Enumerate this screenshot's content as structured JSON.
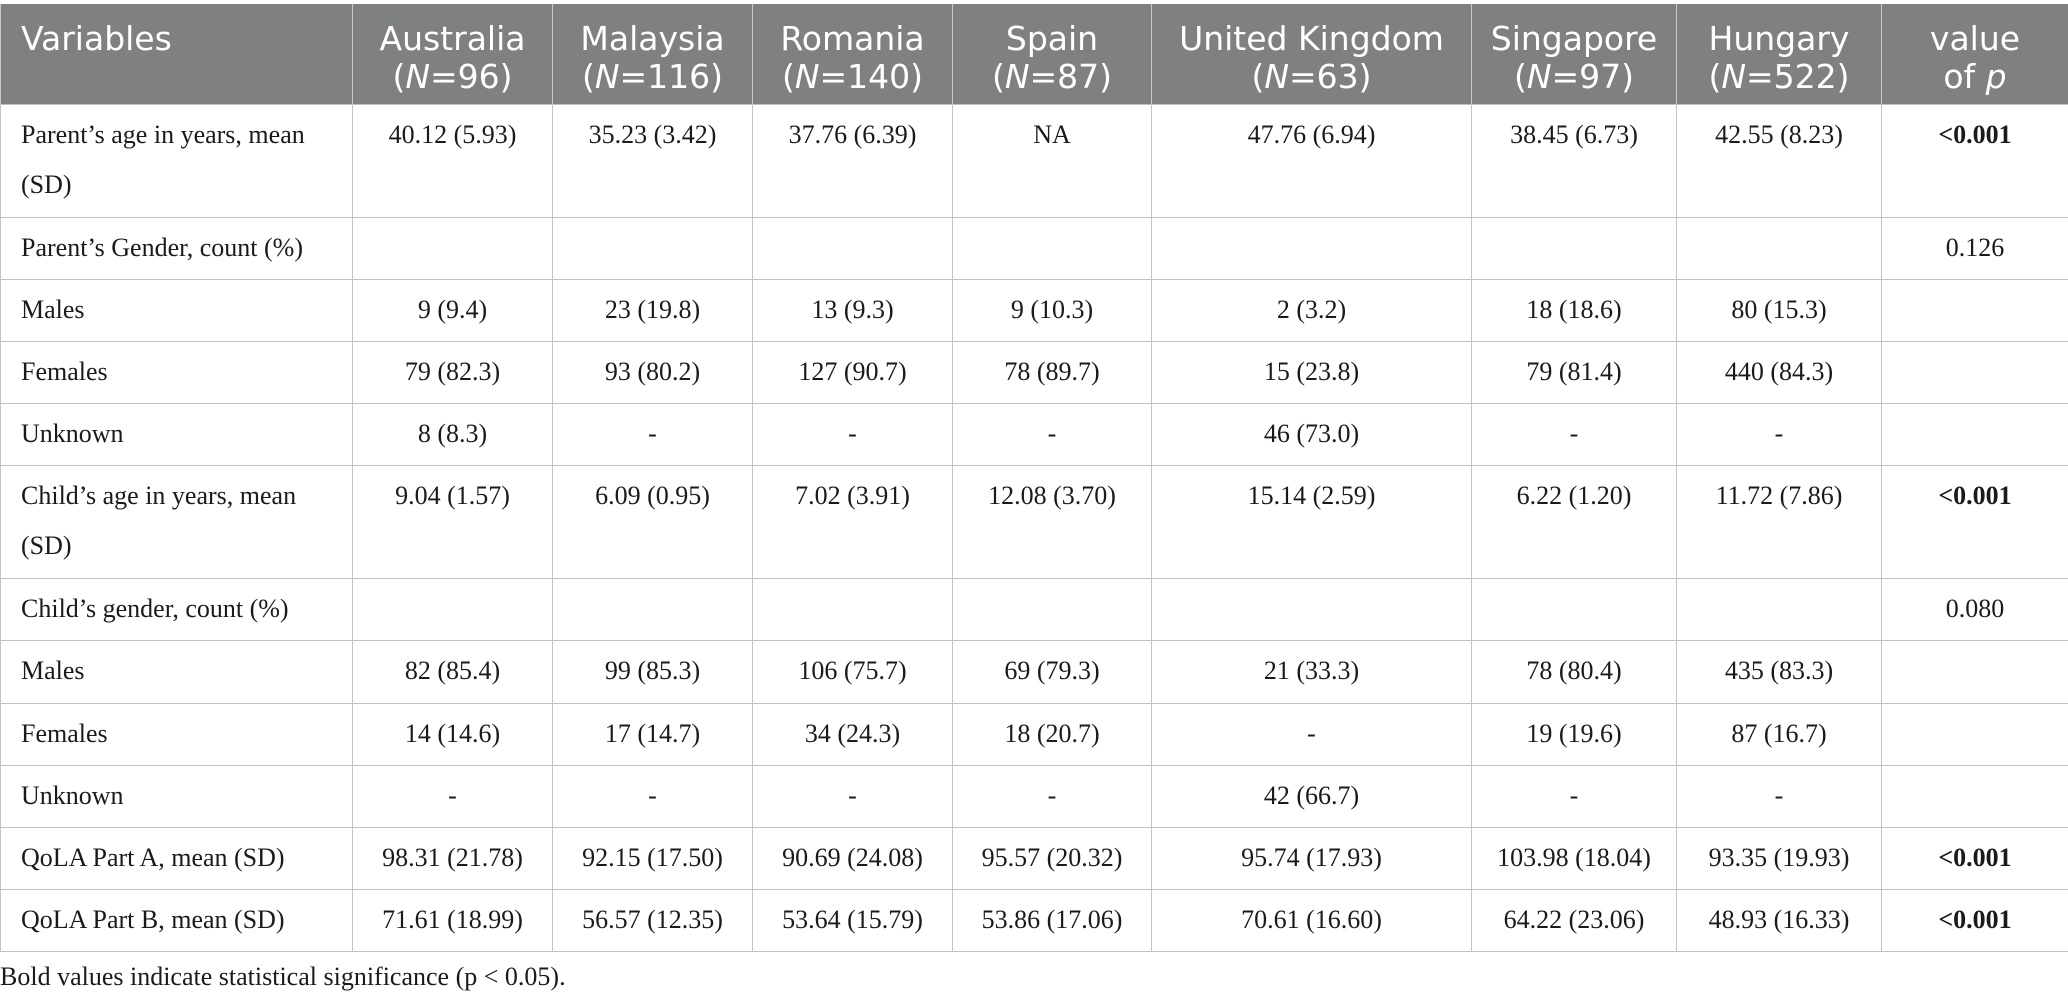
{
  "table": {
    "header": {
      "variables": "Variables",
      "value_of_p_line1": "value",
      "value_of_p_line2_prefix": "of ",
      "value_of_p_line2_symbol": "p",
      "countries": [
        {
          "name": "Australia",
          "open": "(",
          "n_symbol": "N",
          "n_value": "=96)"
        },
        {
          "name": "Malaysia",
          "open": "(",
          "n_symbol": "N",
          "n_value": "=116)"
        },
        {
          "name": "Romania",
          "open": "(",
          "n_symbol": "N",
          "n_value": "=140)"
        },
        {
          "name": "Spain",
          "open": "(",
          "n_symbol": "N",
          "n_value": "=87)"
        },
        {
          "name": "United Kingdom",
          "open": "(",
          "n_symbol": "N",
          "n_value": "=63)"
        },
        {
          "name": "Singapore",
          "open": "(",
          "n_symbol": "N",
          "n_value": "=97)"
        },
        {
          "name": "Hungary",
          "open": "(",
          "n_symbol": "N",
          "n_value": "=522)"
        }
      ]
    },
    "rows": [
      {
        "label": "Parent’s age in years, mean (SD)",
        "values": [
          "40.12 (5.93)",
          "35.23 (3.42)",
          "37.76 (6.39)",
          "NA",
          "47.76 (6.94)",
          "38.45 (6.73)",
          "42.55 (8.23)"
        ],
        "p": "<0.001",
        "significant": true,
        "tall": true
      },
      {
        "label": "Parent’s Gender, count (%)",
        "values": [
          "",
          "",
          "",
          "",
          "",
          "",
          ""
        ],
        "p": "0.126",
        "significant": false,
        "tall": false
      },
      {
        "label": "Males",
        "values": [
          "9 (9.4)",
          "23 (19.8)",
          "13 (9.3)",
          "9 (10.3)",
          "2 (3.2)",
          "18 (18.6)",
          "80 (15.3)"
        ],
        "p": "",
        "significant": false,
        "tall": false
      },
      {
        "label": "Females",
        "values": [
          "79 (82.3)",
          "93 (80.2)",
          "127 (90.7)",
          "78 (89.7)",
          "15 (23.8)",
          "79 (81.4)",
          "440 (84.3)"
        ],
        "p": "",
        "significant": false,
        "tall": false
      },
      {
        "label": "Unknown",
        "values": [
          "8 (8.3)",
          "-",
          "-",
          "-",
          "46 (73.0)",
          "-",
          "-"
        ],
        "p": "",
        "significant": false,
        "tall": false
      },
      {
        "label": "Child’s age in years, mean (SD)",
        "values": [
          "9.04 (1.57)",
          "6.09 (0.95)",
          "7.02 (3.91)",
          "12.08 (3.70)",
          "15.14 (2.59)",
          "6.22 (1.20)",
          "11.72 (7.86)"
        ],
        "p": "<0.001",
        "significant": true,
        "tall": true
      },
      {
        "label": "Child’s gender, count (%)",
        "values": [
          "",
          "",
          "",
          "",
          "",
          "",
          ""
        ],
        "p": "0.080",
        "significant": false,
        "tall": false
      },
      {
        "label": "Males",
        "values": [
          "82 (85.4)",
          "99 (85.3)",
          "106 (75.7)",
          "69 (79.3)",
          "21 (33.3)",
          "78 (80.4)",
          "435 (83.3)"
        ],
        "p": "",
        "significant": false,
        "tall": false
      },
      {
        "label": "Females",
        "values": [
          "14 (14.6)",
          "17 (14.7)",
          "34 (24.3)",
          "18 (20.7)",
          "-",
          "19 (19.6)",
          "87 (16.7)"
        ],
        "p": "",
        "significant": false,
        "tall": false
      },
      {
        "label": "Unknown",
        "values": [
          "-",
          "-",
          "-",
          "-",
          "42 (66.7)",
          "-",
          "-"
        ],
        "p": "",
        "significant": false,
        "tall": false
      },
      {
        "label": "QoLA Part A, mean (SD)",
        "values": [
          "98.31 (21.78)",
          "92.15 (17.50)",
          "90.69 (24.08)",
          "95.57 (20.32)",
          "95.74 (17.93)",
          "103.98 (18.04)",
          "93.35 (19.93)"
        ],
        "p": "<0.001",
        "significant": true,
        "tall": false
      },
      {
        "label": "QoLA Part B, mean (SD)",
        "values": [
          "71.61 (18.99)",
          "56.57 (12.35)",
          "53.64 (15.79)",
          "53.86 (17.06)",
          "70.61 (16.60)",
          "64.22 (23.06)",
          "48.93 (16.33)"
        ],
        "p": "<0.001",
        "significant": true,
        "tall": false
      }
    ]
  },
  "footnote": "Bold values indicate statistical significance (p < 0.05).",
  "colors": {
    "header_background": "#7f8180",
    "header_text": "#ffffff",
    "border": "#c2c2c2"
  }
}
